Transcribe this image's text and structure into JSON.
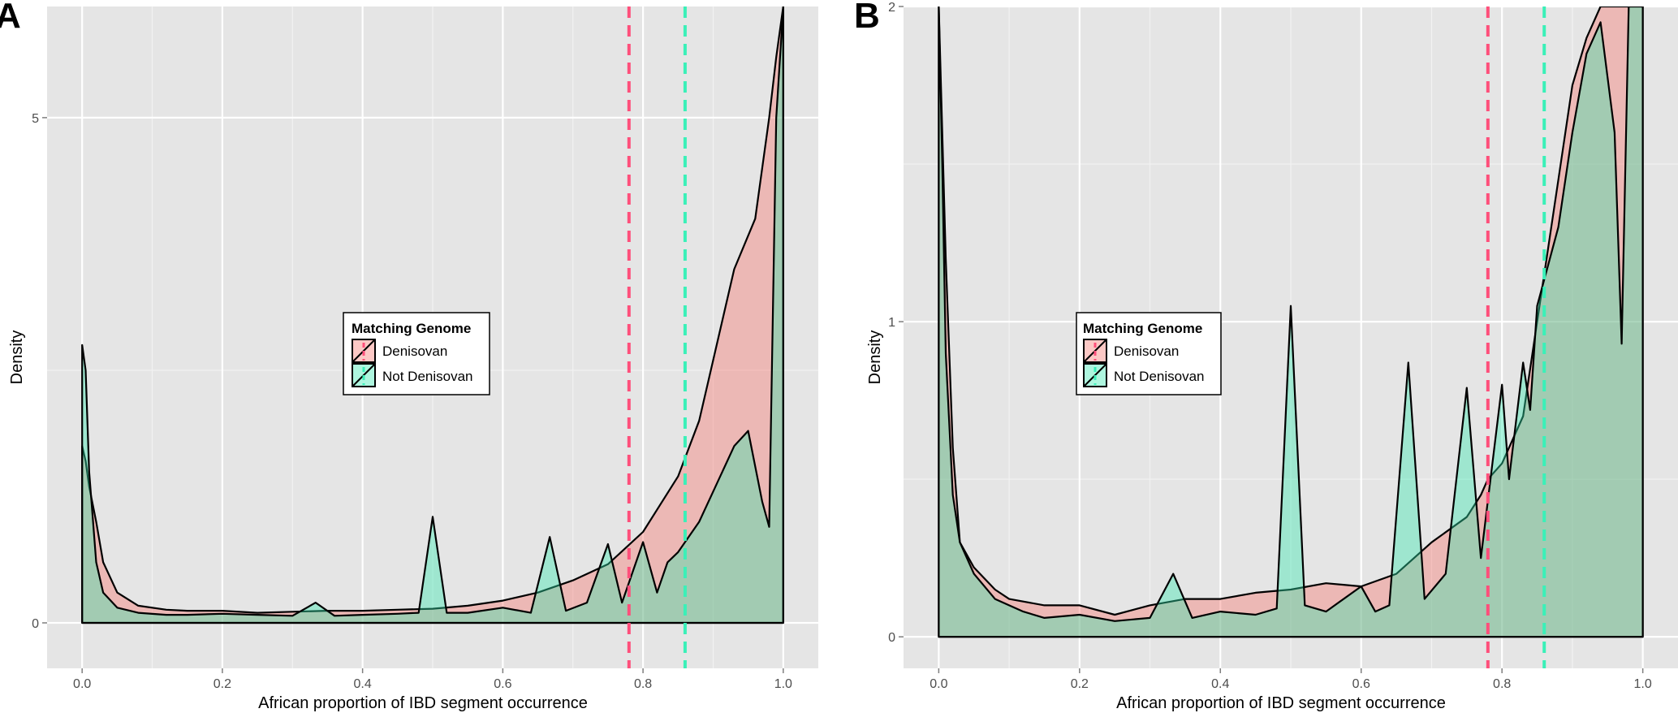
{
  "chart_data": [
    {
      "panel": "A",
      "type": "area",
      "xlabel": "African proportion of IBD segment occurrence",
      "ylabel": "Density",
      "xlim": [
        -0.05,
        1.05
      ],
      "ylim": [
        -0.45,
        6.1
      ],
      "x_ticks": [
        0.0,
        0.2,
        0.4,
        0.6,
        0.8,
        1.0
      ],
      "x_tick_labels": [
        "0.0",
        "0.2",
        "0.4",
        "0.6",
        "0.8",
        "1.0"
      ],
      "y_ticks": [
        0,
        5
      ],
      "y_tick_labels": [
        "0",
        "5"
      ],
      "grid": true,
      "legend": {
        "title": "Matching Genome",
        "position": "center",
        "entries": [
          "Denisovan",
          "Not Denisovan"
        ]
      },
      "colors": {
        "denisovan": "#f8766d",
        "not_denisovan": "#34e8b0",
        "panel_bg": "#e5e5e5",
        "grid": "#ffffff"
      },
      "vlines": [
        {
          "series": "Denisovan",
          "x": 0.78,
          "color": "#ff4f7b"
        },
        {
          "series": "Not Denisovan",
          "x": 0.86,
          "color": "#3af0b8"
        }
      ],
      "series": [
        {
          "name": "Denisovan",
          "x": [
            0.0,
            0.005,
            0.01,
            0.02,
            0.03,
            0.05,
            0.08,
            0.12,
            0.15,
            0.2,
            0.25,
            0.3,
            0.35,
            0.4,
            0.45,
            0.5,
            0.55,
            0.6,
            0.65,
            0.7,
            0.75,
            0.8,
            0.85,
            0.88,
            0.9,
            0.93,
            0.96,
            0.98,
            0.99,
            1.0
          ],
          "y": [
            1.75,
            1.6,
            1.35,
            1.0,
            0.6,
            0.3,
            0.17,
            0.13,
            0.12,
            0.12,
            0.1,
            0.11,
            0.12,
            0.12,
            0.13,
            0.14,
            0.17,
            0.22,
            0.3,
            0.42,
            0.58,
            0.9,
            1.45,
            2.0,
            2.6,
            3.5,
            4.0,
            5.0,
            5.6,
            6.1
          ]
        },
        {
          "name": "Not Denisovan",
          "x": [
            0.0,
            0.005,
            0.01,
            0.02,
            0.03,
            0.05,
            0.08,
            0.12,
            0.15,
            0.2,
            0.25,
            0.3,
            0.333,
            0.36,
            0.4,
            0.45,
            0.48,
            0.5,
            0.52,
            0.55,
            0.6,
            0.64,
            0.667,
            0.69,
            0.72,
            0.75,
            0.77,
            0.8,
            0.82,
            0.835,
            0.85,
            0.88,
            0.9,
            0.93,
            0.95,
            0.97,
            0.98,
            0.99,
            1.0
          ],
          "y": [
            2.75,
            2.5,
            1.5,
            0.6,
            0.3,
            0.15,
            0.1,
            0.08,
            0.08,
            0.09,
            0.08,
            0.07,
            0.2,
            0.07,
            0.08,
            0.09,
            0.1,
            1.05,
            0.1,
            0.1,
            0.15,
            0.1,
            0.85,
            0.12,
            0.2,
            0.78,
            0.2,
            0.8,
            0.3,
            0.6,
            0.7,
            1.0,
            1.3,
            1.75,
            1.9,
            1.2,
            0.95,
            5.0,
            6.1
          ]
        }
      ]
    },
    {
      "panel": "B",
      "type": "area",
      "xlabel": "African proportion of IBD segment occurrence",
      "ylabel": "Density",
      "xlim": [
        -0.05,
        1.05
      ],
      "ylim": [
        -0.1,
        2.0
      ],
      "x_ticks": [
        0.0,
        0.2,
        0.4,
        0.6,
        0.8,
        1.0
      ],
      "x_tick_labels": [
        "0.0",
        "0.2",
        "0.4",
        "0.6",
        "0.8",
        "1.0"
      ],
      "y_ticks": [
        0,
        1,
        2
      ],
      "y_tick_labels": [
        "0",
        "1",
        "2"
      ],
      "grid": true,
      "legend": {
        "title": "Matching Genome",
        "position": "center-left",
        "entries": [
          "Denisovan",
          "Not Denisovan"
        ]
      },
      "colors": {
        "denisovan": "#f8766d",
        "not_denisovan": "#34e8b0",
        "panel_bg": "#e5e5e5",
        "grid": "#ffffff"
      },
      "vlines": [
        {
          "series": "Denisovan",
          "x": 0.78,
          "color": "#ff4f7b"
        },
        {
          "series": "Not Denisovan",
          "x": 0.86,
          "color": "#3af0b8"
        }
      ],
      "series": [
        {
          "name": "Denisovan",
          "x": [
            0.0,
            0.005,
            0.01,
            0.02,
            0.03,
            0.05,
            0.08,
            0.1,
            0.15,
            0.2,
            0.25,
            0.3,
            0.35,
            0.4,
            0.45,
            0.5,
            0.55,
            0.6,
            0.65,
            0.7,
            0.75,
            0.77,
            0.78,
            0.8,
            0.83,
            0.85,
            0.88,
            0.9,
            0.92,
            0.94,
            0.96,
            0.97,
            0.98,
            0.99,
            1.0
          ],
          "y": [
            2.0,
            1.6,
            1.2,
            0.6,
            0.3,
            0.22,
            0.15,
            0.12,
            0.1,
            0.1,
            0.07,
            0.1,
            0.12,
            0.12,
            0.14,
            0.15,
            0.17,
            0.16,
            0.2,
            0.3,
            0.38,
            0.45,
            0.5,
            0.55,
            0.7,
            1.0,
            1.45,
            1.75,
            1.9,
            2.0,
            2.0,
            2.0,
            2.0,
            2.0,
            2.0
          ]
        },
        {
          "name": "Not Denisovan",
          "x": [
            0.0,
            0.005,
            0.01,
            0.02,
            0.03,
            0.05,
            0.08,
            0.12,
            0.15,
            0.2,
            0.25,
            0.3,
            0.333,
            0.36,
            0.4,
            0.45,
            0.48,
            0.5,
            0.52,
            0.55,
            0.6,
            0.62,
            0.64,
            0.667,
            0.69,
            0.72,
            0.75,
            0.77,
            0.8,
            0.81,
            0.83,
            0.84,
            0.85,
            0.88,
            0.9,
            0.92,
            0.94,
            0.96,
            0.97,
            0.98,
            0.99,
            1.0
          ],
          "y": [
            2.0,
            1.5,
            0.9,
            0.45,
            0.3,
            0.2,
            0.12,
            0.08,
            0.06,
            0.07,
            0.05,
            0.06,
            0.2,
            0.06,
            0.08,
            0.07,
            0.09,
            1.05,
            0.1,
            0.08,
            0.16,
            0.08,
            0.1,
            0.87,
            0.12,
            0.2,
            0.79,
            0.25,
            0.8,
            0.5,
            0.87,
            0.72,
            1.05,
            1.3,
            1.6,
            1.85,
            1.95,
            1.6,
            0.93,
            2.0,
            2.0,
            2.0
          ]
        }
      ]
    }
  ]
}
